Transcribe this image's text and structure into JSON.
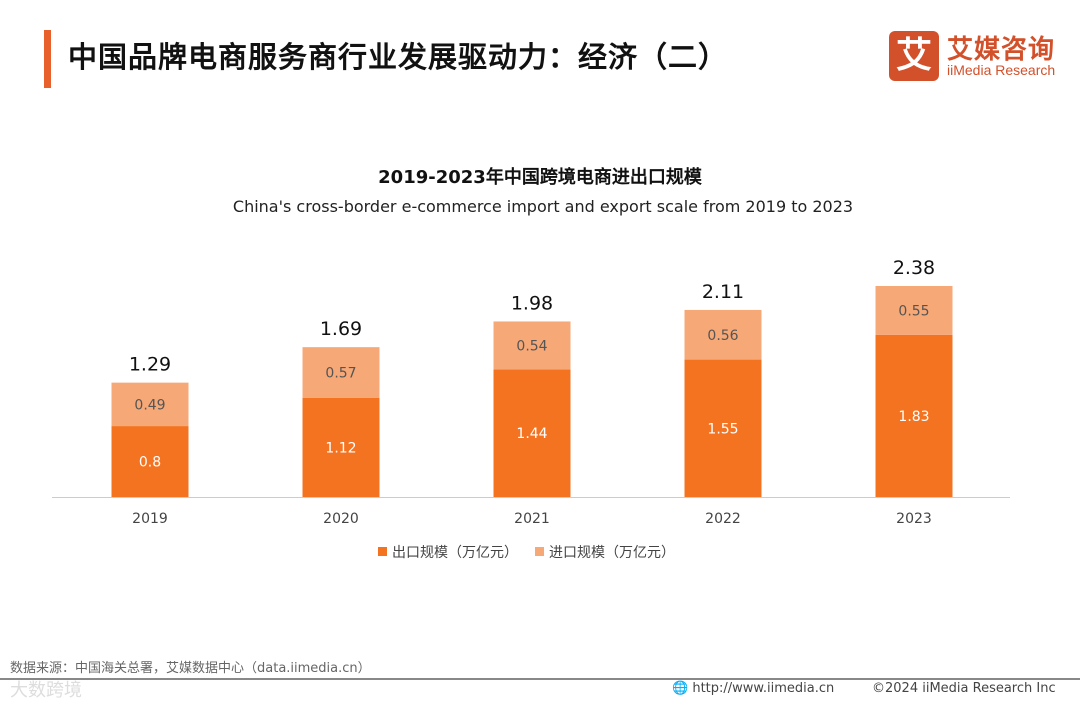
{
  "header": {
    "title": "中国品牌电商服务商行业发展驱动力：经济（二）",
    "accent_color": "#e8602c"
  },
  "logo": {
    "mark": "艾",
    "cn": "艾媒咨询",
    "en": "iiMedia Research",
    "color": "#d2512b"
  },
  "chart_data": {
    "type": "bar",
    "stacked": true,
    "title": "2019-2023年中国跨境电商进出口规模",
    "subtitle": "China's cross-border e-commerce import and export scale from 2019 to 2023",
    "categories": [
      "2019",
      "2020",
      "2021",
      "2022",
      "2023"
    ],
    "series": [
      {
        "name": "出口规模（万亿元）",
        "values": [
          0.8,
          1.12,
          1.44,
          1.55,
          1.83
        ],
        "color": "#f47320"
      },
      {
        "name": "进口规模（万亿元）",
        "values": [
          0.49,
          0.57,
          0.54,
          0.56,
          0.55
        ],
        "color": "#f7a877"
      }
    ],
    "totals": [
      "1.29",
      "1.69",
      "1.98",
      "2.11",
      "2.38"
    ],
    "ylim": [
      0,
      2.38
    ],
    "grid": false,
    "legend_position": "bottom"
  },
  "footer": {
    "source": "数据来源：中国海关总署，艾媒数据中心（data.iimedia.cn）",
    "watermark": "大数跨境",
    "url": "http://www.iimedia.cn",
    "copyright": "©2024  iiMedia Research  Inc"
  }
}
